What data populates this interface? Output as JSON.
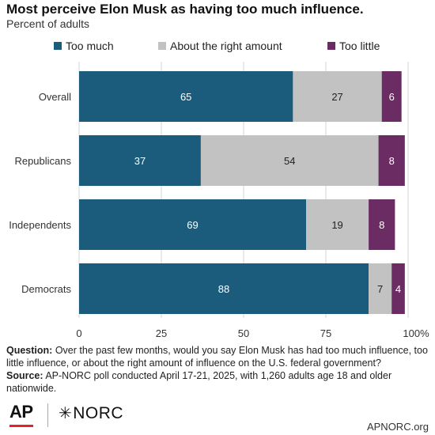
{
  "title": "Most perceive Elon Musk as having too much influence.",
  "subtitle": "Percent of adults",
  "colors": {
    "too_much": "#1b5b7b",
    "about_right": "#c2c2c2",
    "too_little": "#6a2c63"
  },
  "chart_data": {
    "type": "bar",
    "orientation": "horizontal",
    "stacked": true,
    "categories": [
      "Overall",
      "Republicans",
      "Independents",
      "Democrats"
    ],
    "series": [
      {
        "name": "Too much",
        "values": [
          65,
          37,
          69,
          88
        ]
      },
      {
        "name": "About the right amount",
        "values": [
          27,
          54,
          19,
          7
        ]
      },
      {
        "name": "Too little",
        "values": [
          6,
          8,
          8,
          4
        ]
      }
    ],
    "xlim": [
      0,
      100
    ],
    "xticks": [
      "0",
      "25",
      "50",
      "75",
      "100%"
    ],
    "legend": "top",
    "grid": true
  },
  "notes": {
    "question_label": "Question:",
    "question_text": "Over the past few months, would you say Elon Musk has had too much influence, too little influence, or about the right amount of influence on the U.S. federal government?",
    "source_label": "Source:",
    "source_text": "AP-NORC poll conducted April 17-21, 2025, with 1,260 adults age 18 and older nationwide."
  },
  "footer": {
    "ap_logo": "AP",
    "norc_mark": "✳",
    "norc_logo": "NORC",
    "site": "APNORC.org"
  }
}
